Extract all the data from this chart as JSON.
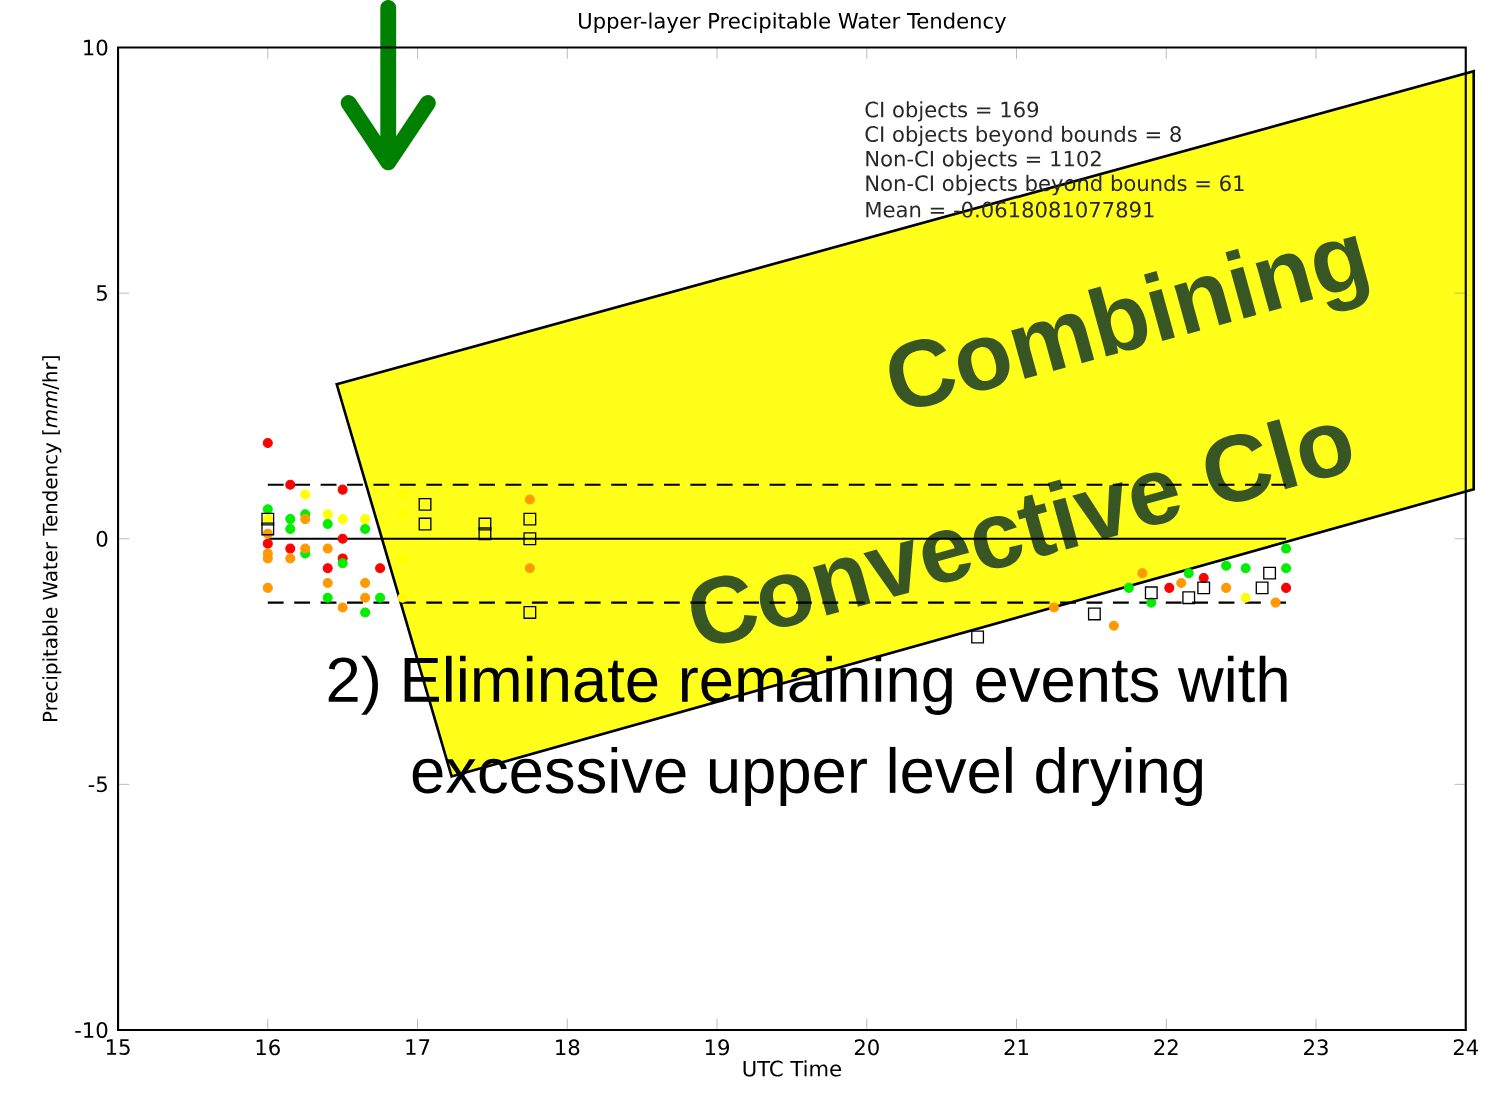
{
  "chart_data": {
    "type": "scatter",
    "title": "Upper-layer Precipitable Water Tendency",
    "xlabel": "UTC Time",
    "ylabel": "Precipitable Water Tendency [*mm*/hr]",
    "xlim": [
      15,
      24
    ],
    "ylim": [
      -10,
      10
    ],
    "xticks": [
      15,
      16,
      17,
      18,
      19,
      20,
      21,
      22,
      23,
      24
    ],
    "yticks": [
      -10,
      -5,
      0,
      5,
      10
    ],
    "grid": false,
    "series": [
      {
        "color": "#ff0000",
        "marker": "circle",
        "x": [
          16,
          16.15,
          16.15,
          16.5,
          16.5,
          16.5,
          16.4,
          16.75,
          22.8,
          22.25,
          22.02,
          16
        ],
        "values": [
          1.95,
          1.1,
          -0.2,
          1.0,
          0.0,
          -0.4,
          -0.6,
          -0.6,
          -1.0,
          -0.8,
          -1.0,
          -0.1
        ]
      },
      {
        "color": "#00ee00",
        "marker": "circle",
        "x": [
          16,
          16.15,
          16.15,
          16.25,
          16.25,
          16.4,
          16.4,
          16.5,
          16.65,
          16.65,
          16.75,
          22.8,
          22.8,
          22.53,
          22.4,
          22.15,
          21.9,
          21.75
        ],
        "values": [
          0.6,
          0.4,
          0.2,
          0.5,
          -0.3,
          0.3,
          -1.2,
          -0.5,
          0.2,
          -1.5,
          -1.2,
          -0.6,
          -0.2,
          -0.6,
          -0.55,
          -0.7,
          -1.3,
          -1.0
        ]
      },
      {
        "color": "#ff9900",
        "marker": "circle",
        "x": [
          16,
          16,
          16,
          16,
          16.15,
          16.25,
          16.25,
          16.4,
          16.4,
          16.5,
          16.65,
          16.65,
          17.75,
          17.75,
          22.73,
          22.4,
          22.1,
          21.84,
          21.65,
          21.25
        ],
        "values": [
          0.1,
          -0.3,
          -0.4,
          -1.0,
          -0.4,
          0.4,
          -0.2,
          -0.2,
          -0.9,
          -1.4,
          -0.9,
          -1.2,
          0.8,
          -0.6,
          -1.3,
          -1.0,
          -0.9,
          -0.7,
          -1.77,
          -1.4
        ]
      },
      {
        "color": "#ffff00",
        "marker": "circle",
        "x": [
          16,
          16.25,
          16.4,
          16.5,
          16.65,
          16.9,
          16.9,
          16.9,
          16.9,
          22.53
        ],
        "values": [
          0.4,
          0.9,
          0.5,
          0.4,
          0.4,
          0.9,
          0.5,
          -0.4,
          -1.2,
          -1.2
        ]
      },
      {
        "color": "#000000",
        "marker": "square",
        "x": [
          16,
          16,
          17.05,
          17.05,
          17.45,
          17.45,
          17.75,
          17.75,
          17.75,
          20.74,
          21.52,
          21.9,
          22.15,
          22.25,
          22.64,
          22.69
        ],
        "values": [
          0.4,
          0.2,
          0.7,
          0.3,
          0.3,
          0.1,
          0.4,
          0,
          -1.5,
          -2.0,
          -1.53,
          -1.1,
          -1.2,
          -1.0,
          -1.0,
          -0.7
        ]
      },
      {
        "type": "line",
        "color": "#000000",
        "marker": "none",
        "line_style": "solid",
        "x": [
          16,
          22.8
        ],
        "values": [
          0,
          0
        ]
      },
      {
        "type": "line",
        "color": "#000000",
        "marker": "none",
        "line_style": "dashed",
        "x": [
          16,
          22.8
        ],
        "values": [
          1.1,
          1.1
        ]
      },
      {
        "type": "line",
        "color": "#000000",
        "marker": "none",
        "line_style": "dashed",
        "x": [
          16,
          22.8
        ],
        "values": [
          -1.3,
          -1.3
        ]
      }
    ],
    "annotations": [
      "CI objects = 169",
      "CI objects beyond bounds = 8",
      "Non-CI objects = 1102",
      "Non-CI objects beyond bounds = 61",
      "Mean = -0.0618081077891",
      "2) Eliminate remaining events with",
      "excessive upper level drying",
      "Combining",
      "Convective Clo"
    ]
  }
}
